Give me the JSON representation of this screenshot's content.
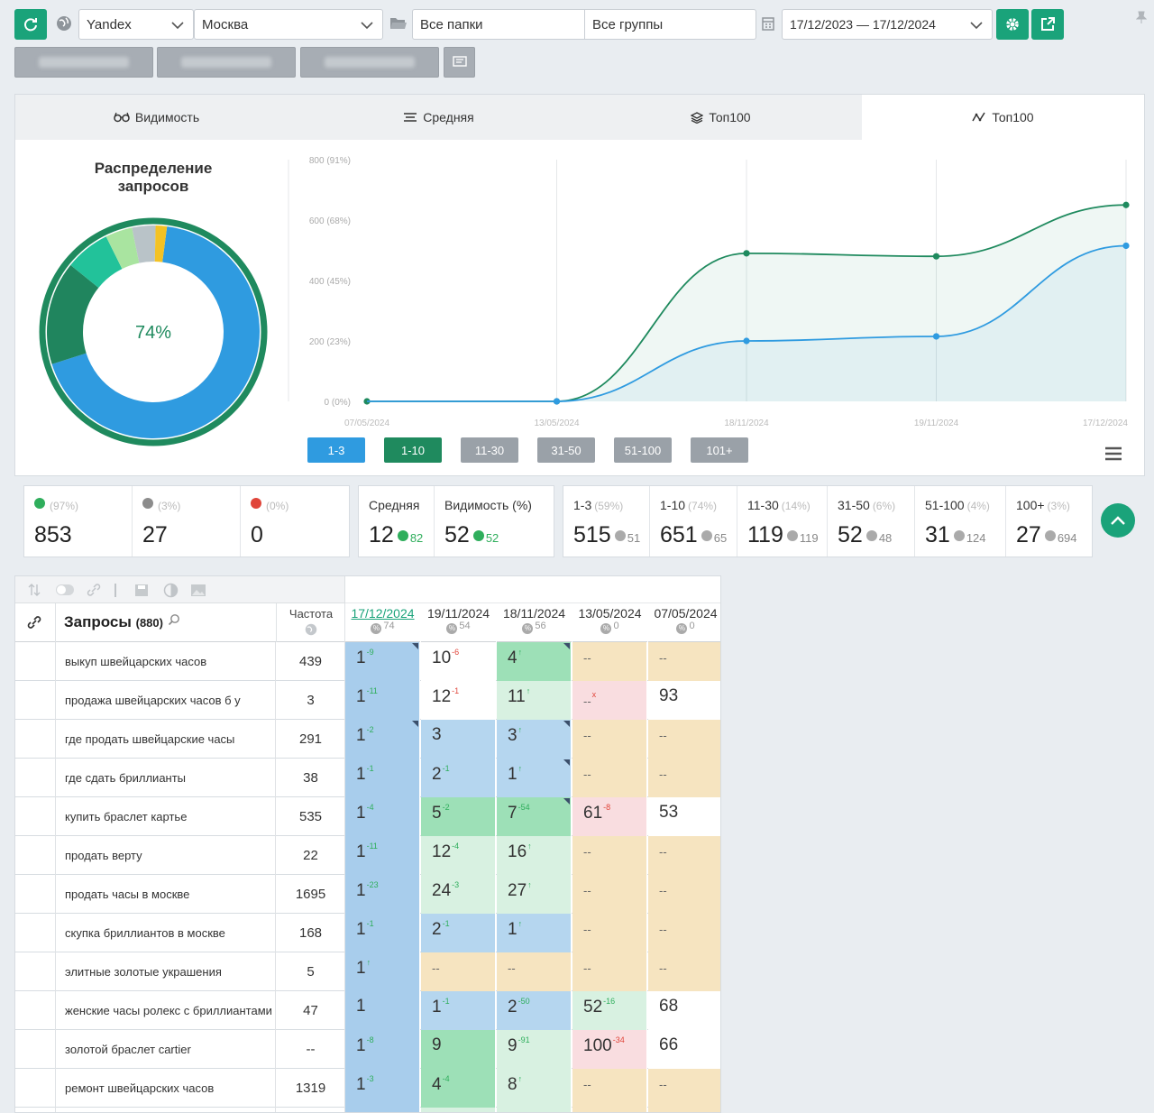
{
  "toolbar": {
    "engine": "Yandex",
    "region": "Москва",
    "folders": "Все папки",
    "groups": "Все группы",
    "date_range": "17/12/2023 — 17/12/2024",
    "icons": [
      "refresh-icon",
      "globe-icon",
      "folder-icon",
      "calendar-icon",
      "gear-icon",
      "export-icon",
      "pin-icon",
      "flag-icon"
    ]
  },
  "tabs": [
    {
      "label": "Видимость",
      "icon": "glasses-icon"
    },
    {
      "label": "Средняя",
      "icon": "lines-icon"
    },
    {
      "label": "Топ100",
      "icon": "layers-icon"
    },
    {
      "label": "Топ100",
      "icon": "chart-line-icon",
      "active": true
    }
  ],
  "donut": {
    "title": "Распределение запросов",
    "center_label": "74%",
    "segments": [
      {
        "name": "1-3",
        "value": 515,
        "color": "#2f9be0"
      },
      {
        "name": "11-30",
        "value": 119,
        "color": "#20855e"
      },
      {
        "name": "31-50",
        "value": 52,
        "color": "#22c29a"
      },
      {
        "name": "51-100",
        "value": 31,
        "color": "#a9e4a0"
      },
      {
        "name": "100+",
        "value": 27,
        "color": "#b9c3c8"
      },
      {
        "name": "other",
        "value": 13,
        "color": "#f3c224"
      }
    ],
    "outer_ring_color": "#1f8a5e"
  },
  "chart_data": {
    "type": "line",
    "x": [
      "07/05/2024",
      "13/05/2024",
      "18/11/2024",
      "19/11/2024",
      "17/12/2024"
    ],
    "y_ticks": [
      "0 (0%)",
      "200 (23%)",
      "400 (45%)",
      "600 (68%)",
      "800 (91%)"
    ],
    "ylim": [
      0,
      800
    ],
    "series": [
      {
        "values": [
          0,
          0,
          490,
          480,
          650
        ],
        "color": "#1f8a5e"
      },
      {
        "values": [
          0,
          0,
          200,
          215,
          515
        ],
        "color": "#2f9be0"
      }
    ],
    "grid": true
  },
  "range_buttons": [
    {
      "label": "1-3",
      "color": "#2f9be0"
    },
    {
      "label": "1-10",
      "color": "#1f8a5e"
    },
    {
      "label": "11-30",
      "color": "#9aa1a8"
    },
    {
      "label": "31-50",
      "color": "#9aa1a8"
    },
    {
      "label": "51-100",
      "color": "#9aa1a8"
    },
    {
      "label": "101+",
      "color": "#9aa1a8"
    }
  ],
  "stats_a": [
    {
      "pct": "(97%)",
      "value": "853",
      "icon": "up"
    },
    {
      "pct": "(3%)",
      "value": "27",
      "icon": "mid"
    },
    {
      "pct": "(0%)",
      "value": "0",
      "icon": "down"
    }
  ],
  "stats_b": [
    {
      "label": "Средняя",
      "value": "12",
      "sub": "82"
    },
    {
      "label": "Видимость (%)",
      "value": "52",
      "sub": "52"
    }
  ],
  "stats_c": [
    {
      "label": "1-3",
      "pct": "(59%)",
      "value": "515",
      "sub": "51"
    },
    {
      "label": "1-10",
      "pct": "(74%)",
      "value": "651",
      "sub": "65"
    },
    {
      "label": "11-30",
      "pct": "(14%)",
      "value": "119",
      "sub": "119"
    },
    {
      "label": "31-50",
      "pct": "(6%)",
      "value": "52",
      "sub": "48"
    },
    {
      "label": "51-100",
      "pct": "(4%)",
      "value": "31",
      "sub": "124"
    },
    {
      "label": "100+",
      "pct": "(3%)",
      "value": "27",
      "sub": "694"
    }
  ],
  "table": {
    "queries_label": "Запросы",
    "queries_count": "(880)",
    "freq_label": "Частота",
    "dates": [
      {
        "date": "17/12/2024",
        "vis": "74"
      },
      {
        "date": "19/11/2024",
        "vis": "54"
      },
      {
        "date": "18/11/2024",
        "vis": "56"
      },
      {
        "date": "13/05/2024",
        "vis": "0"
      },
      {
        "date": "07/05/2024",
        "vis": "0"
      }
    ],
    "rows": [
      {
        "q": "выкуп швейцарских часов",
        "f": "439",
        "p": [
          [
            "1",
            "-9",
            "b",
            1
          ],
          [
            "10",
            "-6",
            "w",
            0
          ],
          [
            "4",
            "↑",
            "g",
            1
          ],
          [
            "--",
            "",
            "y",
            0
          ],
          [
            "--",
            "",
            "y",
            0
          ]
        ]
      },
      {
        "q": "продажа швейцарских часов б у",
        "f": "3",
        "p": [
          [
            "1",
            "-11",
            "b",
            0
          ],
          [
            "12",
            "-1",
            "w",
            0
          ],
          [
            "11",
            "↑",
            "lw",
            0
          ],
          [
            "--",
            "x",
            "p",
            0
          ],
          [
            "93",
            "",
            "w",
            0
          ]
        ]
      },
      {
        "q": "где продать швейцарские часы",
        "f": "291",
        "p": [
          [
            "1",
            "-2",
            "b",
            1
          ],
          [
            "3",
            "",
            "b",
            0
          ],
          [
            "3",
            "↑",
            "b",
            1
          ],
          [
            "--",
            "",
            "y",
            0
          ],
          [
            "--",
            "",
            "y",
            0
          ]
        ]
      },
      {
        "q": "где сдать бриллианты",
        "f": "38",
        "p": [
          [
            "1",
            "-1",
            "b",
            0
          ],
          [
            "2",
            "-1",
            "b",
            0
          ],
          [
            "1",
            "↑",
            "b",
            1
          ],
          [
            "--",
            "",
            "y",
            0
          ],
          [
            "--",
            "",
            "y",
            0
          ]
        ]
      },
      {
        "q": "купить браслет картье",
        "f": "535",
        "p": [
          [
            "1",
            "-4",
            "b",
            0
          ],
          [
            "5",
            "-2",
            "g",
            0
          ],
          [
            "7",
            "-54",
            "g",
            1
          ],
          [
            "61",
            "-8",
            "p",
            0
          ],
          [
            "53",
            "",
            "w",
            0
          ]
        ]
      },
      {
        "q": "продать верту",
        "f": "22",
        "p": [
          [
            "1",
            "-11",
            "b",
            0
          ],
          [
            "12",
            "-4",
            "lw",
            0
          ],
          [
            "16",
            "↑",
            "lw",
            0
          ],
          [
            "--",
            "",
            "y",
            0
          ],
          [
            "--",
            "",
            "y",
            0
          ]
        ]
      },
      {
        "q": "продать часы в москве",
        "f": "1695",
        "p": [
          [
            "1",
            "-23",
            "b",
            0
          ],
          [
            "24",
            "-3",
            "lw",
            0
          ],
          [
            "27",
            "↑",
            "lw",
            0
          ],
          [
            "--",
            "",
            "y",
            0
          ],
          [
            "--",
            "",
            "y",
            0
          ]
        ]
      },
      {
        "q": "скупка бриллиантов в москве",
        "f": "168",
        "p": [
          [
            "1",
            "-1",
            "b",
            0
          ],
          [
            "2",
            "-1",
            "b",
            0
          ],
          [
            "1",
            "↑",
            "b",
            0
          ],
          [
            "--",
            "",
            "y",
            0
          ],
          [
            "--",
            "",
            "y",
            0
          ]
        ]
      },
      {
        "q": "элитные золотые украшения",
        "f": "5",
        "p": [
          [
            "1",
            "↑",
            "b",
            0
          ],
          [
            "--",
            "",
            "y",
            0
          ],
          [
            "--",
            "",
            "y",
            0
          ],
          [
            "--",
            "",
            "y",
            0
          ],
          [
            "--",
            "",
            "y",
            0
          ]
        ]
      },
      {
        "q": "женские часы ролекс с бриллиантами",
        "f": "47",
        "p": [
          [
            "1",
            "",
            "b",
            0
          ],
          [
            "1",
            "-1",
            "b",
            0
          ],
          [
            "2",
            "-50",
            "b",
            0
          ],
          [
            "52",
            "-16",
            "lw",
            0
          ],
          [
            "68",
            "",
            "w",
            0
          ]
        ]
      },
      {
        "q": "золотой браслет cartier",
        "f": "--",
        "p": [
          [
            "1",
            "-8",
            "b",
            0
          ],
          [
            "9",
            "",
            "g",
            0
          ],
          [
            "9",
            "-91",
            "lw",
            0
          ],
          [
            "100",
            "-34",
            "p",
            0
          ],
          [
            "66",
            "",
            "w",
            0
          ]
        ]
      },
      {
        "q": "ремонт швейцарских часов",
        "f": "1319",
        "p": [
          [
            "1",
            "-3",
            "b",
            0
          ],
          [
            "4",
            "-4",
            "g",
            0
          ],
          [
            "8",
            "↑",
            "lw",
            0
          ],
          [
            "--",
            "",
            "y",
            0
          ],
          [
            "--",
            "",
            "y",
            0
          ]
        ]
      },
      {
        "q": "",
        "f": "",
        "p": [
          [
            "",
            "",
            "b",
            0
          ],
          [
            "",
            "",
            "lw",
            0
          ],
          [
            "",
            "",
            "lw",
            0
          ],
          [
            "",
            "",
            "y",
            0
          ],
          [
            "",
            "",
            "y",
            0
          ]
        ]
      }
    ]
  }
}
